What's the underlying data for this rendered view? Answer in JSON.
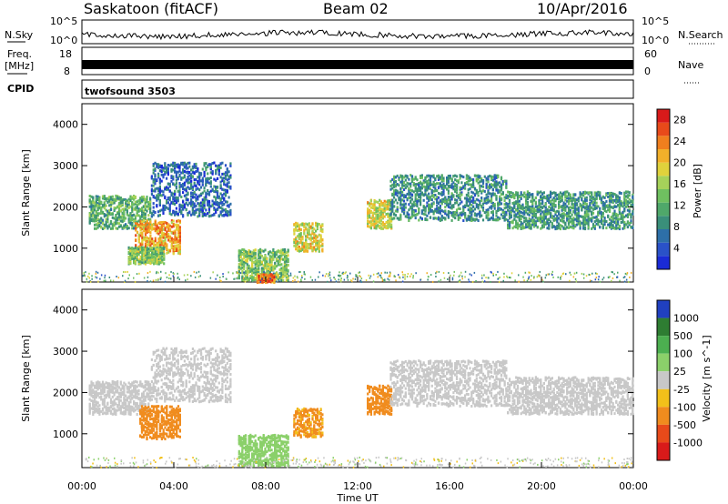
{
  "header": {
    "station": "Saskatoon (fitACF)",
    "beam": "Beam 02",
    "date": "10/Apr/2016"
  },
  "top_panels": {
    "nsky": {
      "label": "N.Sky",
      "y_top": "10^5",
      "y_bottom": "10^0"
    },
    "nsearch": {
      "label": "N.Search",
      "y_top": "10^5",
      "y_bottom": "10^0"
    },
    "freq": {
      "label": "Freq.",
      "unit": "[MHz]",
      "y_top": "18",
      "y_bottom": "8"
    },
    "nave": {
      "label": "Nave",
      "y_top": "60",
      "y_bottom": "0"
    },
    "cpid": {
      "label": "CPID",
      "value": "twofsound 3503"
    }
  },
  "chart_data": [
    {
      "type": "heatmap",
      "panel": "power",
      "title": "",
      "xlabel": "Time UT",
      "ylabel": "Slant Range [km]",
      "xlim": [
        0,
        24
      ],
      "ylim": [
        180,
        4500
      ],
      "yticks": [
        1000,
        2000,
        3000,
        4000
      ],
      "colorbar": {
        "label": "Power [dB]",
        "ticks": [
          4,
          8,
          12,
          16,
          20,
          24,
          28
        ],
        "range": [
          0,
          30
        ],
        "colors": [
          "#1a2bd6",
          "#2a52c8",
          "#2d6fa8",
          "#3a8f7a",
          "#4fa86a",
          "#6fc060",
          "#a6d25a",
          "#e0d23c",
          "#f2b02a",
          "#f07f1e",
          "#e84a1a",
          "#d91a1a"
        ]
      },
      "echo_bands": [
        {
          "t0": 0.3,
          "t1": 3.0,
          "r0": 1500,
          "r1": 2300,
          "level": 12
        },
        {
          "t0": 2.3,
          "t1": 4.3,
          "r0": 900,
          "r1": 1700,
          "level": 22
        },
        {
          "t0": 2.0,
          "t1": 3.6,
          "r0": 650,
          "r1": 1050,
          "level": 14
        },
        {
          "t0": 3.0,
          "t1": 6.5,
          "r0": 1800,
          "r1": 3100,
          "level": 6
        },
        {
          "t0": 6.8,
          "t1": 9.0,
          "r0": 250,
          "r1": 1000,
          "level": 14
        },
        {
          "t0": 7.6,
          "t1": 8.4,
          "r0": 200,
          "r1": 400,
          "level": 24
        },
        {
          "t0": 9.2,
          "t1": 10.5,
          "r0": 950,
          "r1": 1650,
          "level": 18
        },
        {
          "t0": 12.4,
          "t1": 13.5,
          "r0": 1500,
          "r1": 2200,
          "level": 18
        },
        {
          "t0": 13.4,
          "t1": 18.5,
          "r0": 1700,
          "r1": 2800,
          "level": 9
        },
        {
          "t0": 18.5,
          "t1": 24.0,
          "r0": 1500,
          "r1": 2400,
          "level": 10
        }
      ]
    },
    {
      "type": "heatmap",
      "panel": "velocity",
      "title": "",
      "xlabel": "Time UT",
      "ylabel": "Slant Range [km]",
      "xlim": [
        0,
        24
      ],
      "ylim": [
        180,
        4500
      ],
      "yticks": [
        1000,
        2000,
        3000,
        4000
      ],
      "xticks": [
        "00:00",
        "04:00",
        "08:00",
        "12:00",
        "16:00",
        "20:00",
        "00:00"
      ],
      "colorbar": {
        "label": "Velocity [m s^-1]",
        "ticks": [
          "1000",
          "500",
          "100",
          "25",
          "-25",
          "-100",
          "-500",
          "-1000"
        ],
        "colors": [
          "#2040c0",
          "#2e7d32",
          "#4caf50",
          "#8bd06a",
          "#c8c8c8",
          "#f2c01a",
          "#f08c1e",
          "#e84a1a",
          "#d91a1a"
        ]
      },
      "echo_bands": [
        {
          "t0": 0.3,
          "t1": 3.0,
          "r0": 1500,
          "r1": 2300,
          "level": 0
        },
        {
          "t0": 2.5,
          "t1": 4.3,
          "r0": 900,
          "r1": 1700,
          "level": -300
        },
        {
          "t0": 3.0,
          "t1": 6.5,
          "r0": 1800,
          "r1": 3100,
          "level": 0
        },
        {
          "t0": 6.8,
          "t1": 9.0,
          "r0": 250,
          "r1": 1000,
          "level": 60
        },
        {
          "t0": 9.2,
          "t1": 10.5,
          "r0": 950,
          "r1": 1650,
          "level": -150
        },
        {
          "t0": 12.4,
          "t1": 13.5,
          "r0": 1500,
          "r1": 2200,
          "level": -300
        },
        {
          "t0": 13.4,
          "t1": 18.5,
          "r0": 1700,
          "r1": 2800,
          "level": 0
        },
        {
          "t0": 18.5,
          "t1": 24.0,
          "r0": 1500,
          "r1": 2400,
          "level": 0
        }
      ]
    }
  ]
}
